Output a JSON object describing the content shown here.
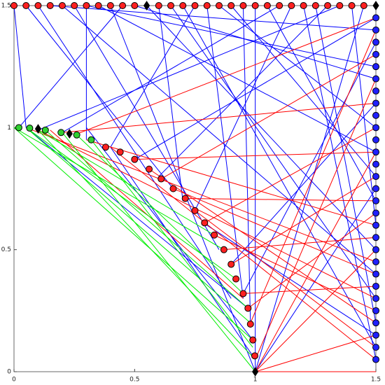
{
  "chart_data": {
    "type": "network",
    "xlim": [
      0,
      1.5
    ],
    "ylim": [
      0,
      1.5
    ],
    "xticks": [
      0,
      0.5,
      1,
      1.5
    ],
    "yticks": [
      0,
      0.5,
      1,
      1.5
    ],
    "edge_groups": [
      {
        "color": "#0000ff",
        "lines": [
          [
            0,
            1.5,
            0.05,
            1
          ],
          [
            0.1,
            1.5,
            0.9,
            0.3
          ],
          [
            0.2,
            1.5,
            1.5,
            0.4
          ],
          [
            0.3,
            1.5,
            0.3,
            0.95
          ],
          [
            0.4,
            1.5,
            1,
            0
          ],
          [
            0.5,
            1.5,
            1.5,
            1.2
          ],
          [
            0.6,
            1.5,
            0.7,
            0.7
          ],
          [
            0.7,
            1.5,
            1.5,
            0.1
          ],
          [
            0.8,
            1.5,
            0.95,
            0.3
          ],
          [
            0.9,
            1.5,
            1.5,
            0.8
          ],
          [
            1,
            1.5,
            1,
            0
          ],
          [
            1.1,
            1.5,
            0.2,
            0.98
          ],
          [
            1.2,
            1.5,
            1.5,
            0.05
          ],
          [
            1.3,
            1.5,
            0.6,
            0.8
          ],
          [
            1.4,
            1.5,
            1.5,
            0.6
          ],
          [
            0.15,
            1.5,
            1.5,
            1.4
          ],
          [
            0.25,
            1.5,
            0.85,
            0.5
          ],
          [
            0.35,
            1.5,
            1.5,
            0.9
          ],
          [
            0.45,
            1.5,
            0.02,
            1
          ],
          [
            0.65,
            1.5,
            1.5,
            0.3
          ],
          [
            0.75,
            1.5,
            0.4,
            0.92
          ],
          [
            0.85,
            1.5,
            1.5,
            1
          ],
          [
            0.95,
            1.5,
            0.98,
            0.2
          ],
          [
            1.05,
            1.5,
            1.5,
            0.7
          ],
          [
            1.15,
            1.5,
            0.75,
            0.66
          ],
          [
            1.25,
            1.5,
            1.5,
            0.2
          ],
          [
            1.35,
            1.5,
            0.1,
            0.99
          ],
          [
            1.45,
            1.5,
            1,
            0
          ],
          [
            1.5,
            1.45,
            0.5,
            0.87
          ],
          [
            1.5,
            1.35,
            0.95,
            0.32
          ],
          [
            1.5,
            1.25,
            0.3,
            1.5
          ],
          [
            1.5,
            1.1,
            0.9,
            0.44
          ],
          [
            0.05,
            1.5,
            0.66,
            0.75
          ],
          [
            0.55,
            1.5,
            1.5,
            0.5
          ],
          [
            1.5,
            0.75,
            1,
            0
          ],
          [
            1.5,
            0.15,
            0.8,
            0.6
          ],
          [
            0.3,
            1,
            0.99,
            0.13
          ],
          [
            0.05,
            1,
            0.97,
            0.26
          ],
          [
            0.4,
            0.92,
            1,
            0.05
          ]
        ]
      },
      {
        "color": "#ff0000",
        "lines": [
          [
            0.1,
            0.99,
            1.5,
            0.3
          ],
          [
            0.2,
            0.98,
            1.5,
            1.1
          ],
          [
            0.3,
            0.95,
            1.5,
            0.6
          ],
          [
            0.4,
            0.92,
            1.5,
            0.05
          ],
          [
            0.5,
            0.87,
            1.5,
            0.9
          ],
          [
            0.56,
            0.83,
            1.5,
            0.2
          ],
          [
            0.61,
            0.79,
            1.5,
            1.3
          ],
          [
            0.66,
            0.75,
            1.5,
            0.4
          ],
          [
            0.71,
            0.71,
            1.5,
            0.7
          ],
          [
            0.75,
            0.66,
            1.5,
            0.1
          ],
          [
            0.79,
            0.61,
            1.5,
            1
          ],
          [
            0.83,
            0.56,
            1.5,
            0.25
          ],
          [
            0.87,
            0.5,
            1.5,
            0.55
          ],
          [
            0.9,
            0.44,
            1.5,
            0.8
          ],
          [
            0.95,
            0.32,
            1.5,
            0.35
          ],
          [
            1,
            0,
            1.5,
            0.5
          ],
          [
            1,
            0,
            1.5,
            0.9
          ],
          [
            1,
            0,
            1.5,
            0.15
          ],
          [
            1,
            0.05,
            1.5,
            1.2
          ],
          [
            0.97,
            0.26,
            1.5,
            0.65
          ],
          [
            0.05,
            1,
            1.5,
            0.45
          ],
          [
            0.15,
            0.99,
            0.95,
            0.3
          ],
          [
            0.25,
            0.97,
            1.5,
            1.45
          ],
          [
            1,
            0,
            1.5,
            0
          ],
          [
            0.98,
            0.2,
            1.5,
            1.4
          ]
        ]
      },
      {
        "color": "#00ee00",
        "lines": [
          [
            0,
            1,
            0.99,
            0.13
          ],
          [
            0.05,
            1,
            0.98,
            0.2
          ],
          [
            0.1,
            0.99,
            1,
            0.05
          ],
          [
            0.13,
            0.99,
            0.97,
            0.26
          ],
          [
            0.05,
            1,
            0.92,
            0.38
          ],
          [
            0.2,
            0.98,
            1,
            0
          ],
          [
            0.26,
            0.97,
            0.95,
            0.32
          ],
          [
            0,
            1,
            0.87,
            0.5
          ],
          [
            0.32,
            0.95,
            0.99,
            0.1
          ],
          [
            0.1,
            0.99,
            0.83,
            0.56
          ]
        ]
      }
    ],
    "node_groups": [
      {
        "color": "#ff2020",
        "marker": "circle",
        "x": [
          0,
          0.05,
          0.1,
          0.15,
          0.2,
          0.25,
          0.3,
          0.35,
          0.4,
          0.45,
          0.5,
          0.6,
          0.65,
          0.7,
          0.75,
          0.8,
          0.85,
          0.9,
          0.95,
          1,
          1.05,
          1.1,
          1.15,
          1.2,
          1.25,
          1.3,
          1.35,
          1.4,
          1.45
        ],
        "y": [
          1.5,
          1.5,
          1.5,
          1.5,
          1.5,
          1.5,
          1.5,
          1.5,
          1.5,
          1.5,
          1.5,
          1.5,
          1.5,
          1.5,
          1.5,
          1.5,
          1.5,
          1.5,
          1.5,
          1.5,
          1.5,
          1.5,
          1.5,
          1.5,
          1.5,
          1.5,
          1.5,
          1.5,
          1.5
        ]
      },
      {
        "color": "#2020ff",
        "marker": "circle",
        "x": [
          1.5,
          1.5,
          1.5,
          1.5,
          1.5,
          1.5,
          1.5,
          1.5,
          1.5,
          1.5,
          1.5,
          1.5,
          1.5,
          1.5,
          1.5,
          1.5,
          1.5,
          1.5,
          1.5,
          1.5,
          1.5,
          1.5,
          1.5,
          1.5,
          1.5,
          1.5,
          1.5,
          1.5,
          1.5
        ],
        "y": [
          0.05,
          0.1,
          0.15,
          0.2,
          0.25,
          0.3,
          0.35,
          0.4,
          0.45,
          0.5,
          0.55,
          0.6,
          0.65,
          0.7,
          0.75,
          0.8,
          0.85,
          0.9,
          0.95,
          1,
          1.05,
          1.1,
          1.15,
          1.2,
          1.25,
          1.3,
          1.35,
          1.4,
          1.45
        ]
      },
      {
        "color": "#30d030",
        "marker": "circle",
        "x": [
          0.02,
          0.065,
          0.13,
          0.195,
          0.26,
          0.32
        ],
        "y": [
          1,
          0.998,
          0.99,
          0.98,
          0.97,
          0.95
        ]
      },
      {
        "color": "#ff2020",
        "marker": "circle",
        "x": [
          0.38,
          0.44,
          0.5,
          0.56,
          0.61,
          0.66,
          0.71,
          0.75,
          0.79,
          0.83,
          0.87,
          0.9,
          0.92,
          0.95,
          0.97,
          0.98,
          0.99,
          0.998
        ],
        "y": [
          0.92,
          0.9,
          0.87,
          0.83,
          0.79,
          0.75,
          0.71,
          0.66,
          0.61,
          0.56,
          0.5,
          0.44,
          0.38,
          0.32,
          0.26,
          0.195,
          0.13,
          0.065
        ]
      },
      {
        "color": "#000000",
        "marker": "diamond",
        "x": [
          1,
          1.5,
          0.55,
          0.23,
          0.1
        ],
        "y": [
          0,
          1.5,
          1.5,
          0.975,
          0.995
        ]
      }
    ]
  }
}
